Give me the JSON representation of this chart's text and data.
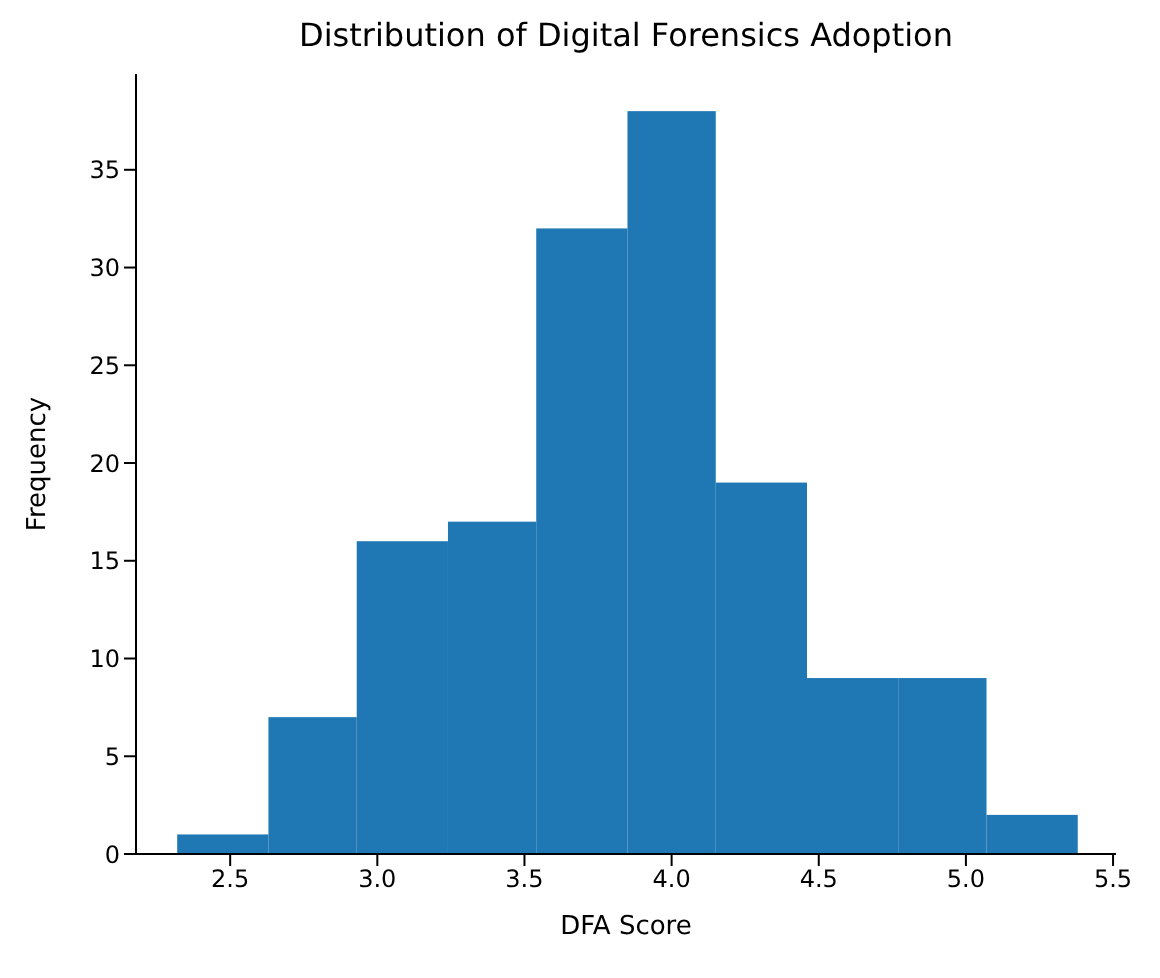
{
  "chart_data": {
    "type": "histogram",
    "title": "Distribution of Digital Forensics Adoption",
    "xlabel": "DFA Score",
    "ylabel": "Frequency",
    "bins": [
      2.32,
      2.63,
      2.93,
      3.24,
      3.54,
      3.85,
      4.15,
      4.46,
      4.77,
      5.07,
      5.38
    ],
    "values": [
      1,
      7,
      16,
      17,
      32,
      38,
      19,
      9,
      9,
      2
    ],
    "color": "#1f77b4",
    "xlim": [
      2.18,
      5.51
    ],
    "ylim": [
      0,
      39.9
    ],
    "xticks": [
      {
        "value": 2.5,
        "label": "2.5"
      },
      {
        "value": 3,
        "label": "3.0"
      },
      {
        "value": 3.5,
        "label": "3.5"
      },
      {
        "value": 4,
        "label": "4.0"
      },
      {
        "value": 4.5,
        "label": "4.5"
      },
      {
        "value": 5,
        "label": "5.0"
      },
      {
        "value": 5.5,
        "label": "5.5"
      }
    ],
    "yticks": [
      0,
      5,
      10,
      15,
      20,
      25,
      30,
      35
    ],
    "grid": false
  }
}
